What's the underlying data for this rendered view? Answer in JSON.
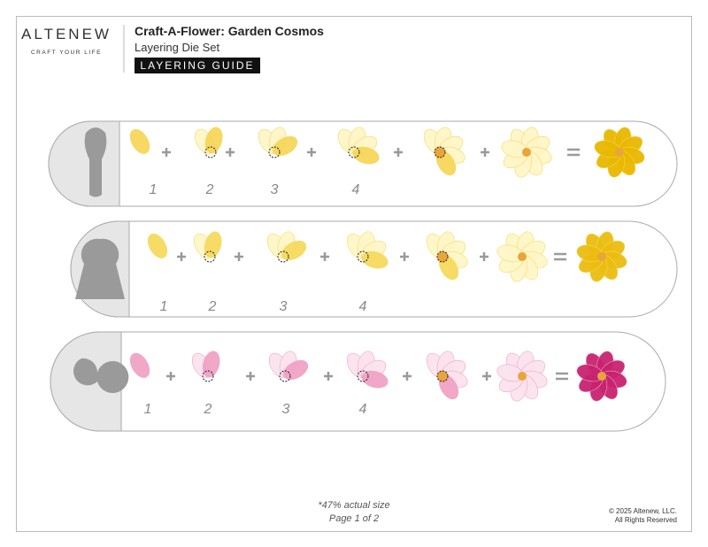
{
  "header": {
    "logo": "ALTENEW",
    "tagline": "CRAFT YOUR LIFE",
    "title": "Craft-A-Flower: Garden Cosmos",
    "subtitle": "Layering Die Set",
    "badge": "LAYERING GUIDE"
  },
  "rows": [
    {
      "steps": [
        "1",
        "2",
        "3",
        "4"
      ]
    },
    {
      "steps": [
        "1",
        "2",
        "3",
        "4"
      ]
    },
    {
      "steps": [
        "1",
        "2",
        "3",
        "4"
      ]
    }
  ],
  "footer": {
    "scale_note": "*47% actual size",
    "page": "Page 1 of 2",
    "copyright": "© 2025 Altenew, LLC.",
    "rights": "All Rights Reserved"
  }
}
